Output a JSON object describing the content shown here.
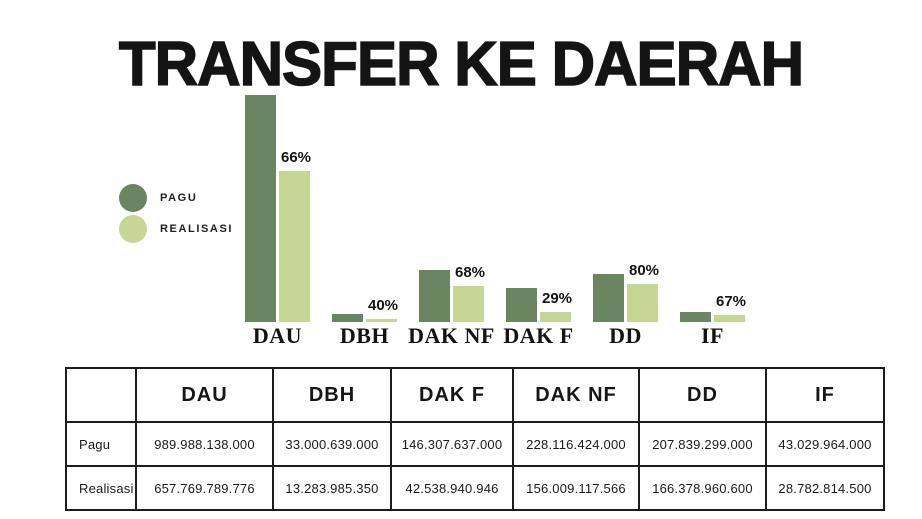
{
  "title": "TRANSFER KE DAERAH",
  "colors": {
    "pagu": "#6a8661",
    "realisasi": "#c6d694",
    "text": "#141414",
    "table_border": "#1c1c1c",
    "background": "#ffffff"
  },
  "legend": {
    "items": [
      {
        "label": "PAGU",
        "color": "#6a8661"
      },
      {
        "label": "REALISASI",
        "color": "#c6d694"
      }
    ]
  },
  "chart_data": {
    "type": "bar",
    "title": "TRANSFER KE DAERAH",
    "categories": [
      "DAU",
      "DBH",
      "DAK NF",
      "DAK F",
      "DD",
      "IF"
    ],
    "series": [
      {
        "name": "PAGU",
        "values": [
          989988138000,
          33000639000,
          228116424000,
          146307637000,
          207839299000,
          43029964000
        ]
      },
      {
        "name": "REALISASI",
        "values": [
          657769789776,
          13283985350,
          156009117566,
          42538940946,
          166378960600,
          28782814500
        ]
      }
    ],
    "percent_labels": [
      "66%",
      "40%",
      "68%",
      "29%",
      "80%",
      "67%"
    ],
    "xlabel": "",
    "ylabel": "",
    "ylim": [
      0,
      989988138000
    ],
    "grid": false,
    "legend_position": "left"
  },
  "table": {
    "headers": [
      "",
      "DAU",
      "DBH",
      "DAK F",
      "DAK NF",
      "DD",
      "IF"
    ],
    "rows": [
      {
        "label": "Pagu",
        "values": [
          "989.988.138.000",
          "33.000.639.000",
          "146.307.637.000",
          "228.116.424.000",
          "207.839.299.000",
          "43.029.964.000"
        ]
      },
      {
        "label": "Realisasi",
        "values": [
          "657.769.789.776",
          "13.283.985.350",
          "42.538.940.946",
          "156.009.117.566",
          "166.378.960.600",
          "28.782.814.500"
        ]
      }
    ]
  }
}
